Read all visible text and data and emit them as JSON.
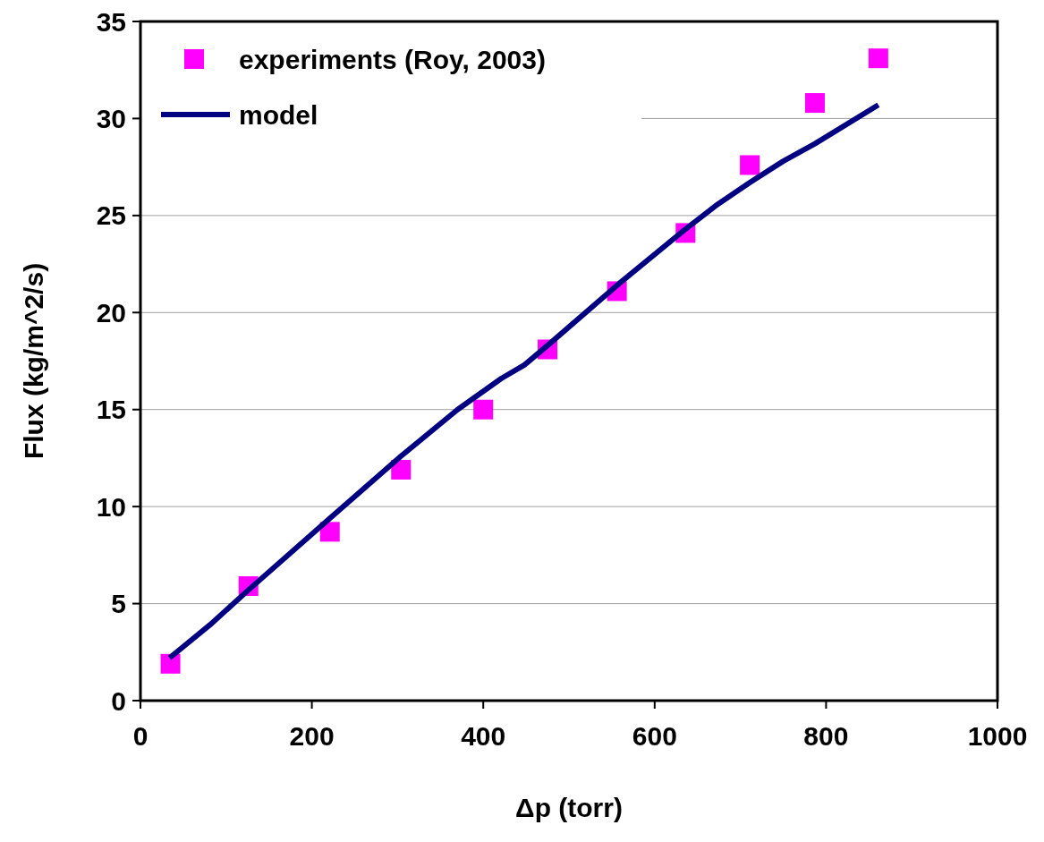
{
  "chart_data": {
    "type": "scatter",
    "xlabel": "Δp (torr)",
    "ylabel": "Flux (kg/m^2/s)",
    "xlim": [
      0,
      1000
    ],
    "xticks": [
      0,
      200,
      400,
      600,
      800,
      1000
    ],
    "ylim": [
      0,
      35
    ],
    "yticks": [
      0,
      5,
      10,
      15,
      20,
      25,
      30,
      35
    ],
    "grid": "y",
    "legend": "top left",
    "series": [
      {
        "name": "experiments (Roy, 2003)",
        "marker": "square",
        "color": "#ff00ff",
        "x": [
          35,
          126,
          221,
          304,
          400,
          475,
          556,
          636,
          711,
          787,
          861
        ],
        "values": [
          1.9,
          5.9,
          8.7,
          11.9,
          15.0,
          18.1,
          21.1,
          24.1,
          27.6,
          30.8,
          33.1
        ]
      },
      {
        "name": "model",
        "type": "line",
        "marker": "none",
        "line_style": "solid",
        "color": "#000080",
        "x": [
          34,
          81,
          126,
          221,
          304,
          370,
          421,
          448,
          475,
          556,
          636,
          671,
          711,
          750,
          787,
          861
        ],
        "values": [
          2.2,
          3.9,
          5.7,
          9.4,
          12.6,
          15.0,
          16.6,
          17.3,
          18.3,
          21.4,
          24.3,
          25.5,
          26.7,
          27.8,
          28.7,
          30.7
        ]
      }
    ]
  }
}
